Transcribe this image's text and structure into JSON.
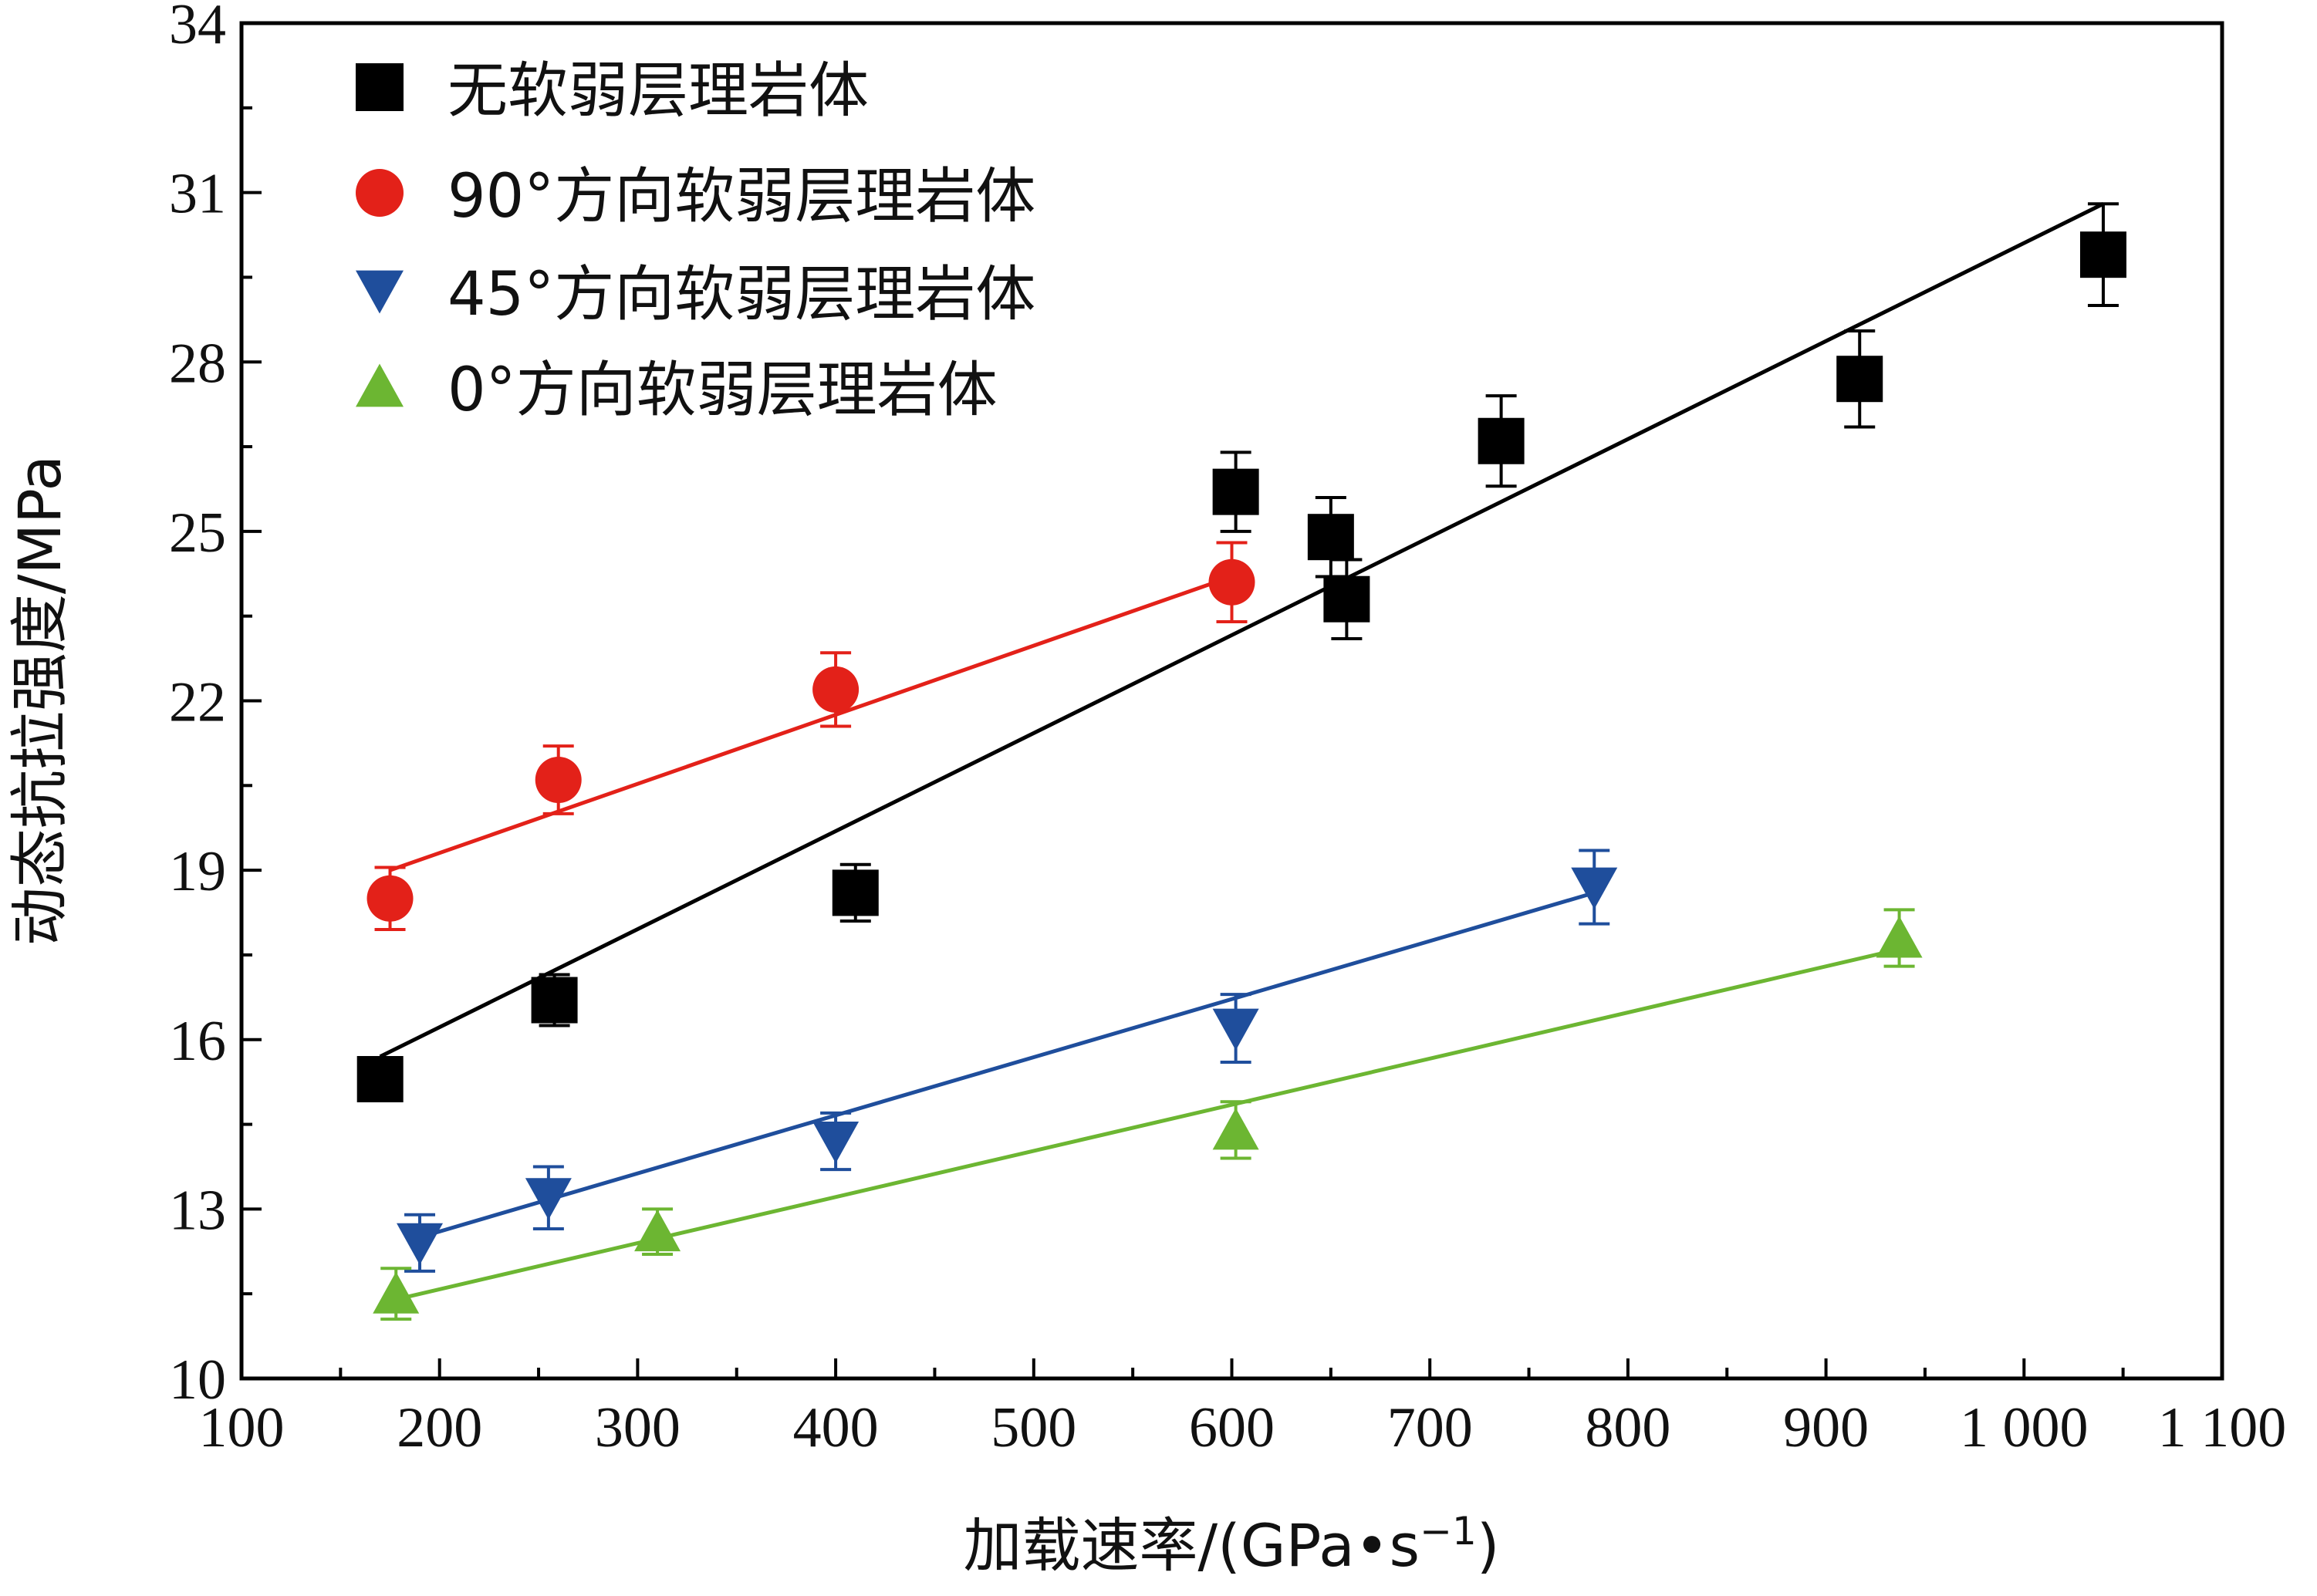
{
  "chart_data": {
    "type": "scatter",
    "xlabel": "加载速率/(GPa•s",
    "xlabel_sup": "−1",
    "xlabel_close": ")",
    "ylabel": "动态抗拉强度/MPa",
    "xlim": [
      100,
      1100
    ],
    "ylim": [
      10,
      34
    ],
    "x_ticks": [
      100,
      200,
      300,
      400,
      500,
      600,
      700,
      800,
      900,
      1000,
      1100
    ],
    "x_tick_labels": [
      "100",
      "200",
      "300",
      "400",
      "500",
      "600",
      "700",
      "800",
      "900",
      "1 000",
      "1 100"
    ],
    "y_ticks": [
      10,
      13,
      16,
      19,
      22,
      25,
      28,
      31,
      34
    ],
    "y_tick_labels": [
      "10",
      "13",
      "16",
      "19",
      "22",
      "25",
      "28",
      "31",
      "34"
    ],
    "grid": false,
    "legend_position": "top-left",
    "series": [
      {
        "name": "无软弱层理岩体",
        "marker": "square",
        "color": "#000000",
        "x": [
          170,
          258,
          410,
          602,
          650,
          658,
          736,
          917,
          1040
        ],
        "y": [
          15.3,
          16.7,
          18.6,
          25.7,
          24.9,
          23.8,
          26.6,
          27.7,
          29.9
        ],
        "err": [
          0.35,
          0.45,
          0.5,
          0.7,
          0.7,
          0.7,
          0.8,
          0.85,
          0.9
        ],
        "fit": {
          "x": [
            170,
            1040
          ],
          "y": [
            15.7,
            30.8
          ]
        }
      },
      {
        "name": "90°方向软弱层理岩体",
        "marker": "circle",
        "color": "#e32119",
        "x": [
          175,
          260,
          400,
          600
        ],
        "y": [
          18.5,
          20.6,
          22.2,
          24.1
        ],
        "err": [
          0.55,
          0.6,
          0.65,
          0.7
        ],
        "fit": {
          "x": [
            175,
            600
          ],
          "y": [
            19.0,
            24.2
          ]
        }
      },
      {
        "name": "45°方向软弱层理岩体",
        "marker": "triangle-down",
        "color": "#1f4e9c",
        "x": [
          190,
          255,
          400,
          602,
          783
        ],
        "y": [
          12.4,
          13.2,
          14.2,
          16.2,
          18.7
        ],
        "err": [
          0.5,
          0.55,
          0.5,
          0.6,
          0.65
        ],
        "fit": {
          "x": [
            190,
            783
          ],
          "y": [
            12.5,
            18.6
          ]
        }
      },
      {
        "name": "0°方向软弱层理岩体",
        "marker": "triangle-up",
        "color": "#6cb632",
        "x": [
          178,
          310,
          602,
          937
        ],
        "y": [
          11.5,
          12.6,
          14.4,
          17.8
        ],
        "err": [
          0.45,
          0.4,
          0.5,
          0.5
        ],
        "fit": {
          "x": [
            178,
            937
          ],
          "y": [
            11.4,
            17.6
          ]
        }
      }
    ]
  }
}
